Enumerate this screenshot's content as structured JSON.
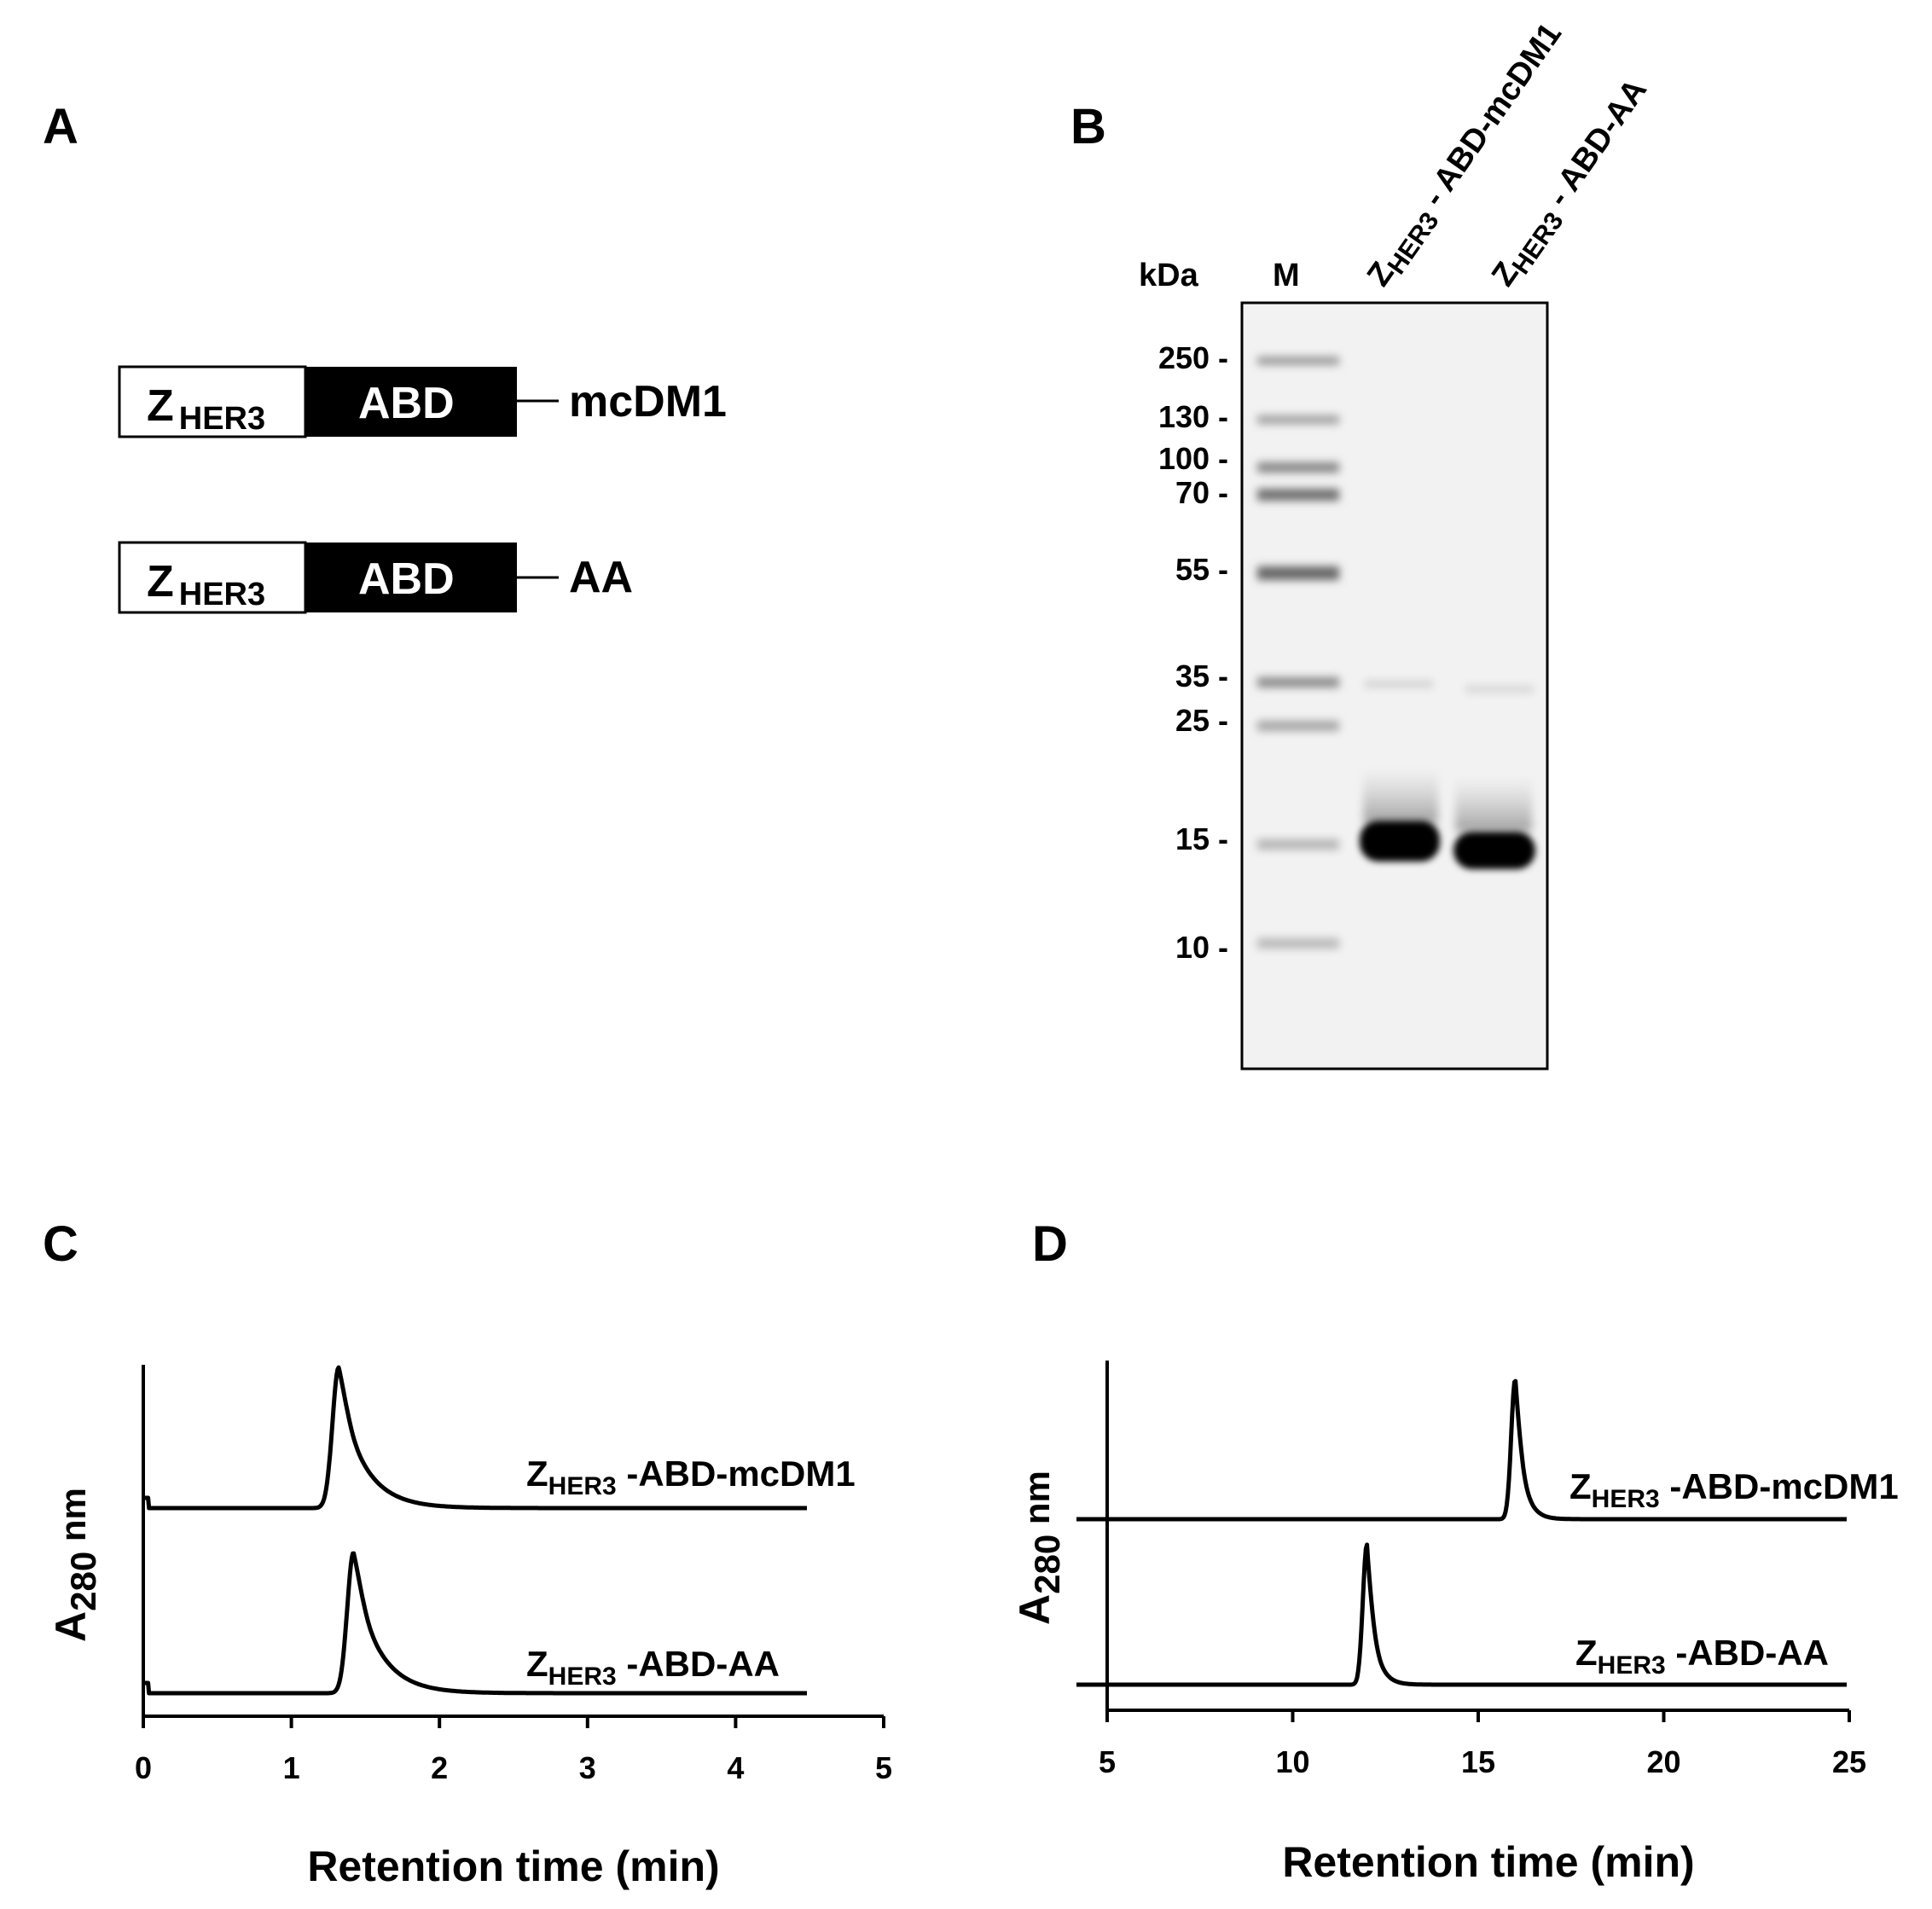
{
  "panels": {
    "A": {
      "label": "A",
      "constructs": [
        {
          "z": "Z",
          "z_sub": "HER3",
          "abd": "ABD",
          "suffix": "mcDM1"
        },
        {
          "z": "Z",
          "z_sub": "HER3",
          "abd": "ABD",
          "suffix": "AA"
        }
      ]
    },
    "B": {
      "label": "B",
      "unit": "kDa",
      "marker_lane": "M",
      "lanes": [
        {
          "z": "Z",
          "z_sub": "HER3",
          "rest": " - ABD-mcDM1"
        },
        {
          "z": "Z",
          "z_sub": "HER3",
          "rest": " - ABD-AA"
        }
      ],
      "markers": [
        "250 -",
        "130 -",
        "100 -",
        "70 -",
        "55 -",
        "35 -",
        "25 -",
        "15 -",
        "10 -"
      ]
    },
    "C": {
      "label": "C",
      "ylabel": "A",
      "ylabel_sub": "280",
      "ylabel_unit": " nm",
      "xlabel": "Retention time (min)",
      "ticks": [
        "0",
        "1",
        "2",
        "3",
        "4",
        "5"
      ],
      "traces": [
        {
          "z": "Z",
          "z_sub": "HER3",
          "rest": " -ABD-mcDM1"
        },
        {
          "z": "Z",
          "z_sub": "HER3",
          "rest": " -ABD-AA"
        }
      ]
    },
    "D": {
      "label": "D",
      "ylabel": "A",
      "ylabel_sub": "280",
      "ylabel_unit": " nm",
      "xlabel": "Retention time (min)",
      "ticks": [
        "5",
        "10",
        "15",
        "20",
        "25"
      ],
      "traces": [
        {
          "z": "Z",
          "z_sub": "HER3",
          "rest": " -ABD-mcDM1"
        },
        {
          "z": "Z",
          "z_sub": "HER3",
          "rest": " -ABD-AA"
        }
      ]
    }
  },
  "chart_data": [
    {
      "type": "line",
      "panel": "C",
      "xlabel": "Retention time (min)",
      "ylabel": "A280 nm",
      "xlim": [
        0,
        5
      ],
      "series": [
        {
          "name": "ZHER3-ABD-mcDM1",
          "peak_x": 1.32
        },
        {
          "name": "ZHER3-ABD-AA",
          "peak_x": 1.42
        }
      ]
    },
    {
      "type": "line",
      "panel": "D",
      "xlabel": "Retention time (min)",
      "ylabel": "A280 nm",
      "xlim": [
        5,
        25
      ],
      "series": [
        {
          "name": "ZHER3-ABD-mcDM1",
          "peak_x": 16.0
        },
        {
          "name": "ZHER3-ABD-AA",
          "peak_x": 12.0
        }
      ]
    }
  ]
}
